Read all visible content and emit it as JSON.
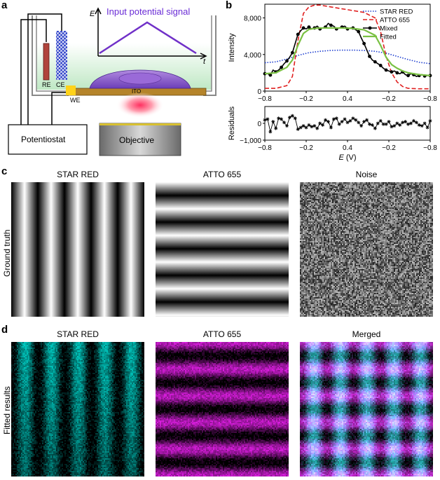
{
  "panels": {
    "a": "a",
    "b": "b",
    "c": "c",
    "d": "d"
  },
  "panel_a": {
    "signal_title": "Input potential signal",
    "e_axis": "E",
    "t_axis": "t",
    "re": "RE",
    "ce": "CE",
    "we": "WE",
    "ito": "ITO",
    "potentiostat": "Potentiostat",
    "objective": "Objective",
    "colors": {
      "signal": "#7030c8",
      "solution": "#bfe8c4",
      "ito": "#b5842a",
      "cell": "#8a5cc8",
      "ce": "#2b3fc8",
      "re": "#b0443c"
    }
  },
  "chart_data": [
    {
      "type": "line",
      "panel": "b-top",
      "ylabel": "Intensity",
      "ylim": [
        0,
        9500
      ],
      "yticks": [
        "0",
        "4,000",
        "8,000"
      ],
      "xticks": [
        "−0.8",
        "−0.2",
        "0.4",
        "−0.2",
        "−0.8"
      ],
      "legend_position": "top-right",
      "series": [
        {
          "name": "STAR RED",
          "color": "#1f3fd0",
          "style": "dotted",
          "x": [
            0,
            4,
            8,
            12,
            16,
            20,
            24,
            28,
            32,
            36,
            40,
            44,
            48,
            52,
            56,
            60
          ],
          "y": [
            3100,
            3200,
            3500,
            3900,
            4200,
            4350,
            4450,
            4480,
            4480,
            4450,
            4350,
            4150,
            3800,
            3450,
            3150,
            3000
          ]
        },
        {
          "name": "ATTO 655",
          "color": "#e02020",
          "style": "dashed",
          "x": [
            0,
            4,
            8,
            10,
            12,
            14,
            16,
            18,
            20,
            24,
            28,
            32,
            36,
            40,
            42,
            44,
            46,
            48,
            50,
            52,
            56,
            60
          ],
          "y": [
            300,
            300,
            600,
            1600,
            5500,
            8500,
            9200,
            9400,
            9400,
            9200,
            9000,
            8800,
            8600,
            8000,
            6500,
            3800,
            2000,
            1000,
            500,
            300,
            250,
            250
          ]
        },
        {
          "name": "Mixed",
          "color": "#000000",
          "style": "solid-dots",
          "x": [
            0,
            1,
            2,
            3,
            4,
            5,
            6,
            7,
            8,
            9,
            10,
            11,
            12,
            13,
            14,
            15,
            16,
            17,
            18,
            19,
            20,
            21,
            22,
            23,
            24,
            25,
            26,
            27,
            28,
            29,
            30,
            31,
            32,
            33,
            34,
            35,
            36,
            37,
            38,
            39,
            40,
            41,
            42,
            43,
            44,
            45,
            46,
            47,
            48,
            49,
            50,
            51,
            52,
            53,
            54,
            55,
            56,
            57,
            58,
            59,
            60
          ],
          "y": [
            1900,
            1900,
            1750,
            2300,
            2100,
            2300,
            2600,
            3000,
            3300,
            3700,
            4200,
            5200,
            6200,
            6600,
            6900,
            6800,
            7000,
            6800,
            6900,
            7100,
            6800,
            6900,
            7000,
            7400,
            7200,
            7100,
            6800,
            6900,
            7000,
            7100,
            6800,
            6900,
            6900,
            6700,
            6500,
            5800,
            5200,
            4500,
            3800,
            3400,
            3200,
            3000,
            2800,
            2500,
            2300,
            2200,
            2100,
            2200,
            2000,
            1900,
            2100,
            1800,
            1700,
            1900,
            1800,
            1600,
            1700,
            1800,
            1650,
            1700,
            1700
          ]
        },
        {
          "name": "Fitted",
          "color": "#7ac143",
          "style": "solid",
          "x": [
            0,
            4,
            8,
            10,
            12,
            14,
            16,
            18,
            20,
            24,
            28,
            32,
            36,
            40,
            42,
            44,
            46,
            48,
            50,
            52,
            56,
            60
          ],
          "y": [
            1900,
            2000,
            2600,
            3400,
            5000,
            6300,
            6750,
            6850,
            6900,
            6900,
            6900,
            6850,
            6700,
            6100,
            5000,
            3700,
            2900,
            2500,
            2200,
            2000,
            1800,
            1700
          ]
        }
      ]
    },
    {
      "type": "line",
      "panel": "b-bottom",
      "ylabel": "Residuals",
      "xlabel": "E (V)",
      "ylim": [
        -1000,
        1000
      ],
      "yticks": [
        "0",
        "−1,000"
      ],
      "xticks": [
        "−0.8",
        "−0.2",
        "0.4",
        "−0.2",
        "−0.8"
      ],
      "series": [
        {
          "name": "",
          "color": "#000000",
          "x": [
            0,
            1,
            2,
            3,
            4,
            5,
            6,
            7,
            8,
            9,
            10,
            11,
            12,
            13,
            14,
            15,
            16,
            17,
            18,
            19,
            20,
            21,
            22,
            23,
            24,
            25,
            26,
            27,
            28,
            29,
            30,
            31,
            32,
            33,
            34,
            35,
            36,
            37,
            38,
            39,
            40,
            41,
            42,
            43,
            44,
            45,
            46,
            47,
            48,
            49,
            50,
            51,
            52,
            53,
            54,
            55,
            56,
            57,
            58,
            59,
            60
          ],
          "y": [
            200,
            250,
            -500,
            100,
            -300,
            300,
            250,
            50,
            -150,
            350,
            450,
            300,
            -350,
            -250,
            -150,
            -250,
            -100,
            -200,
            -150,
            -300,
            0,
            -100,
            200,
            100,
            -250,
            250,
            300,
            -50,
            100,
            250,
            50,
            150,
            300,
            200,
            50,
            -150,
            100,
            200,
            -50,
            -100,
            -300,
            0,
            150,
            -50,
            -50,
            100,
            -200,
            -150,
            0,
            -100,
            50,
            100,
            -50,
            0,
            150,
            50,
            -100,
            -150,
            0,
            -250,
            150
          ]
        }
      ]
    }
  ],
  "panel_c": {
    "side_label": "Ground truth",
    "titles": [
      "STAR RED",
      "ATTO 655",
      "Noise"
    ]
  },
  "panel_d": {
    "side_label": "Fitted results",
    "titles": [
      "STAR RED",
      "ATTO 655",
      "Merged"
    ]
  }
}
